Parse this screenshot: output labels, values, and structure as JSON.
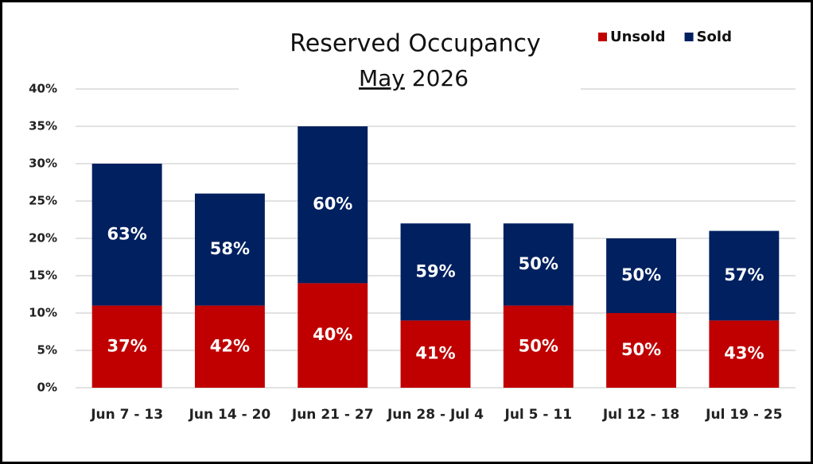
{
  "chart_data": {
    "type": "stacked_bar",
    "title": "Reserved Occupancy",
    "subtitle": [
      "May",
      "2026"
    ],
    "categories": [
      "Jun 7 - 13",
      "Jun 14 - 20",
      "Jun 21 - 27",
      "Jun 28 - Jul 4",
      "Jul 5 - 11",
      "Jul 12 - 18",
      "Jul 19 - 25"
    ],
    "series": [
      {
        "name": "Unsold",
        "color": "#c00000",
        "values": [
          11,
          11,
          14,
          9,
          11,
          10,
          9
        ],
        "labels": [
          "37%",
          "42%",
          "40%",
          "41%",
          "50%",
          "50%",
          "43%"
        ]
      },
      {
        "name": "Sold",
        "color": "#002060",
        "values": [
          19,
          15,
          21,
          13,
          11,
          10,
          12
        ],
        "labels": [
          "63%",
          "58%",
          "60%",
          "59%",
          "50%",
          "50%",
          "57%"
        ]
      }
    ],
    "ylim": [
      0,
      40
    ],
    "yticks": [
      {
        "value": 0,
        "label": "0%"
      },
      {
        "value": 5,
        "label": "5%"
      },
      {
        "value": 10,
        "label": "10%"
      },
      {
        "value": 15,
        "label": "15%"
      },
      {
        "value": 20,
        "label": "20%"
      },
      {
        "value": 25,
        "label": "25%"
      },
      {
        "value": 30,
        "label": "30%"
      },
      {
        "value": 35,
        "label": "35%"
      },
      {
        "value": 40,
        "label": "40%"
      }
    ],
    "grid": true,
    "legend": "top-right"
  }
}
